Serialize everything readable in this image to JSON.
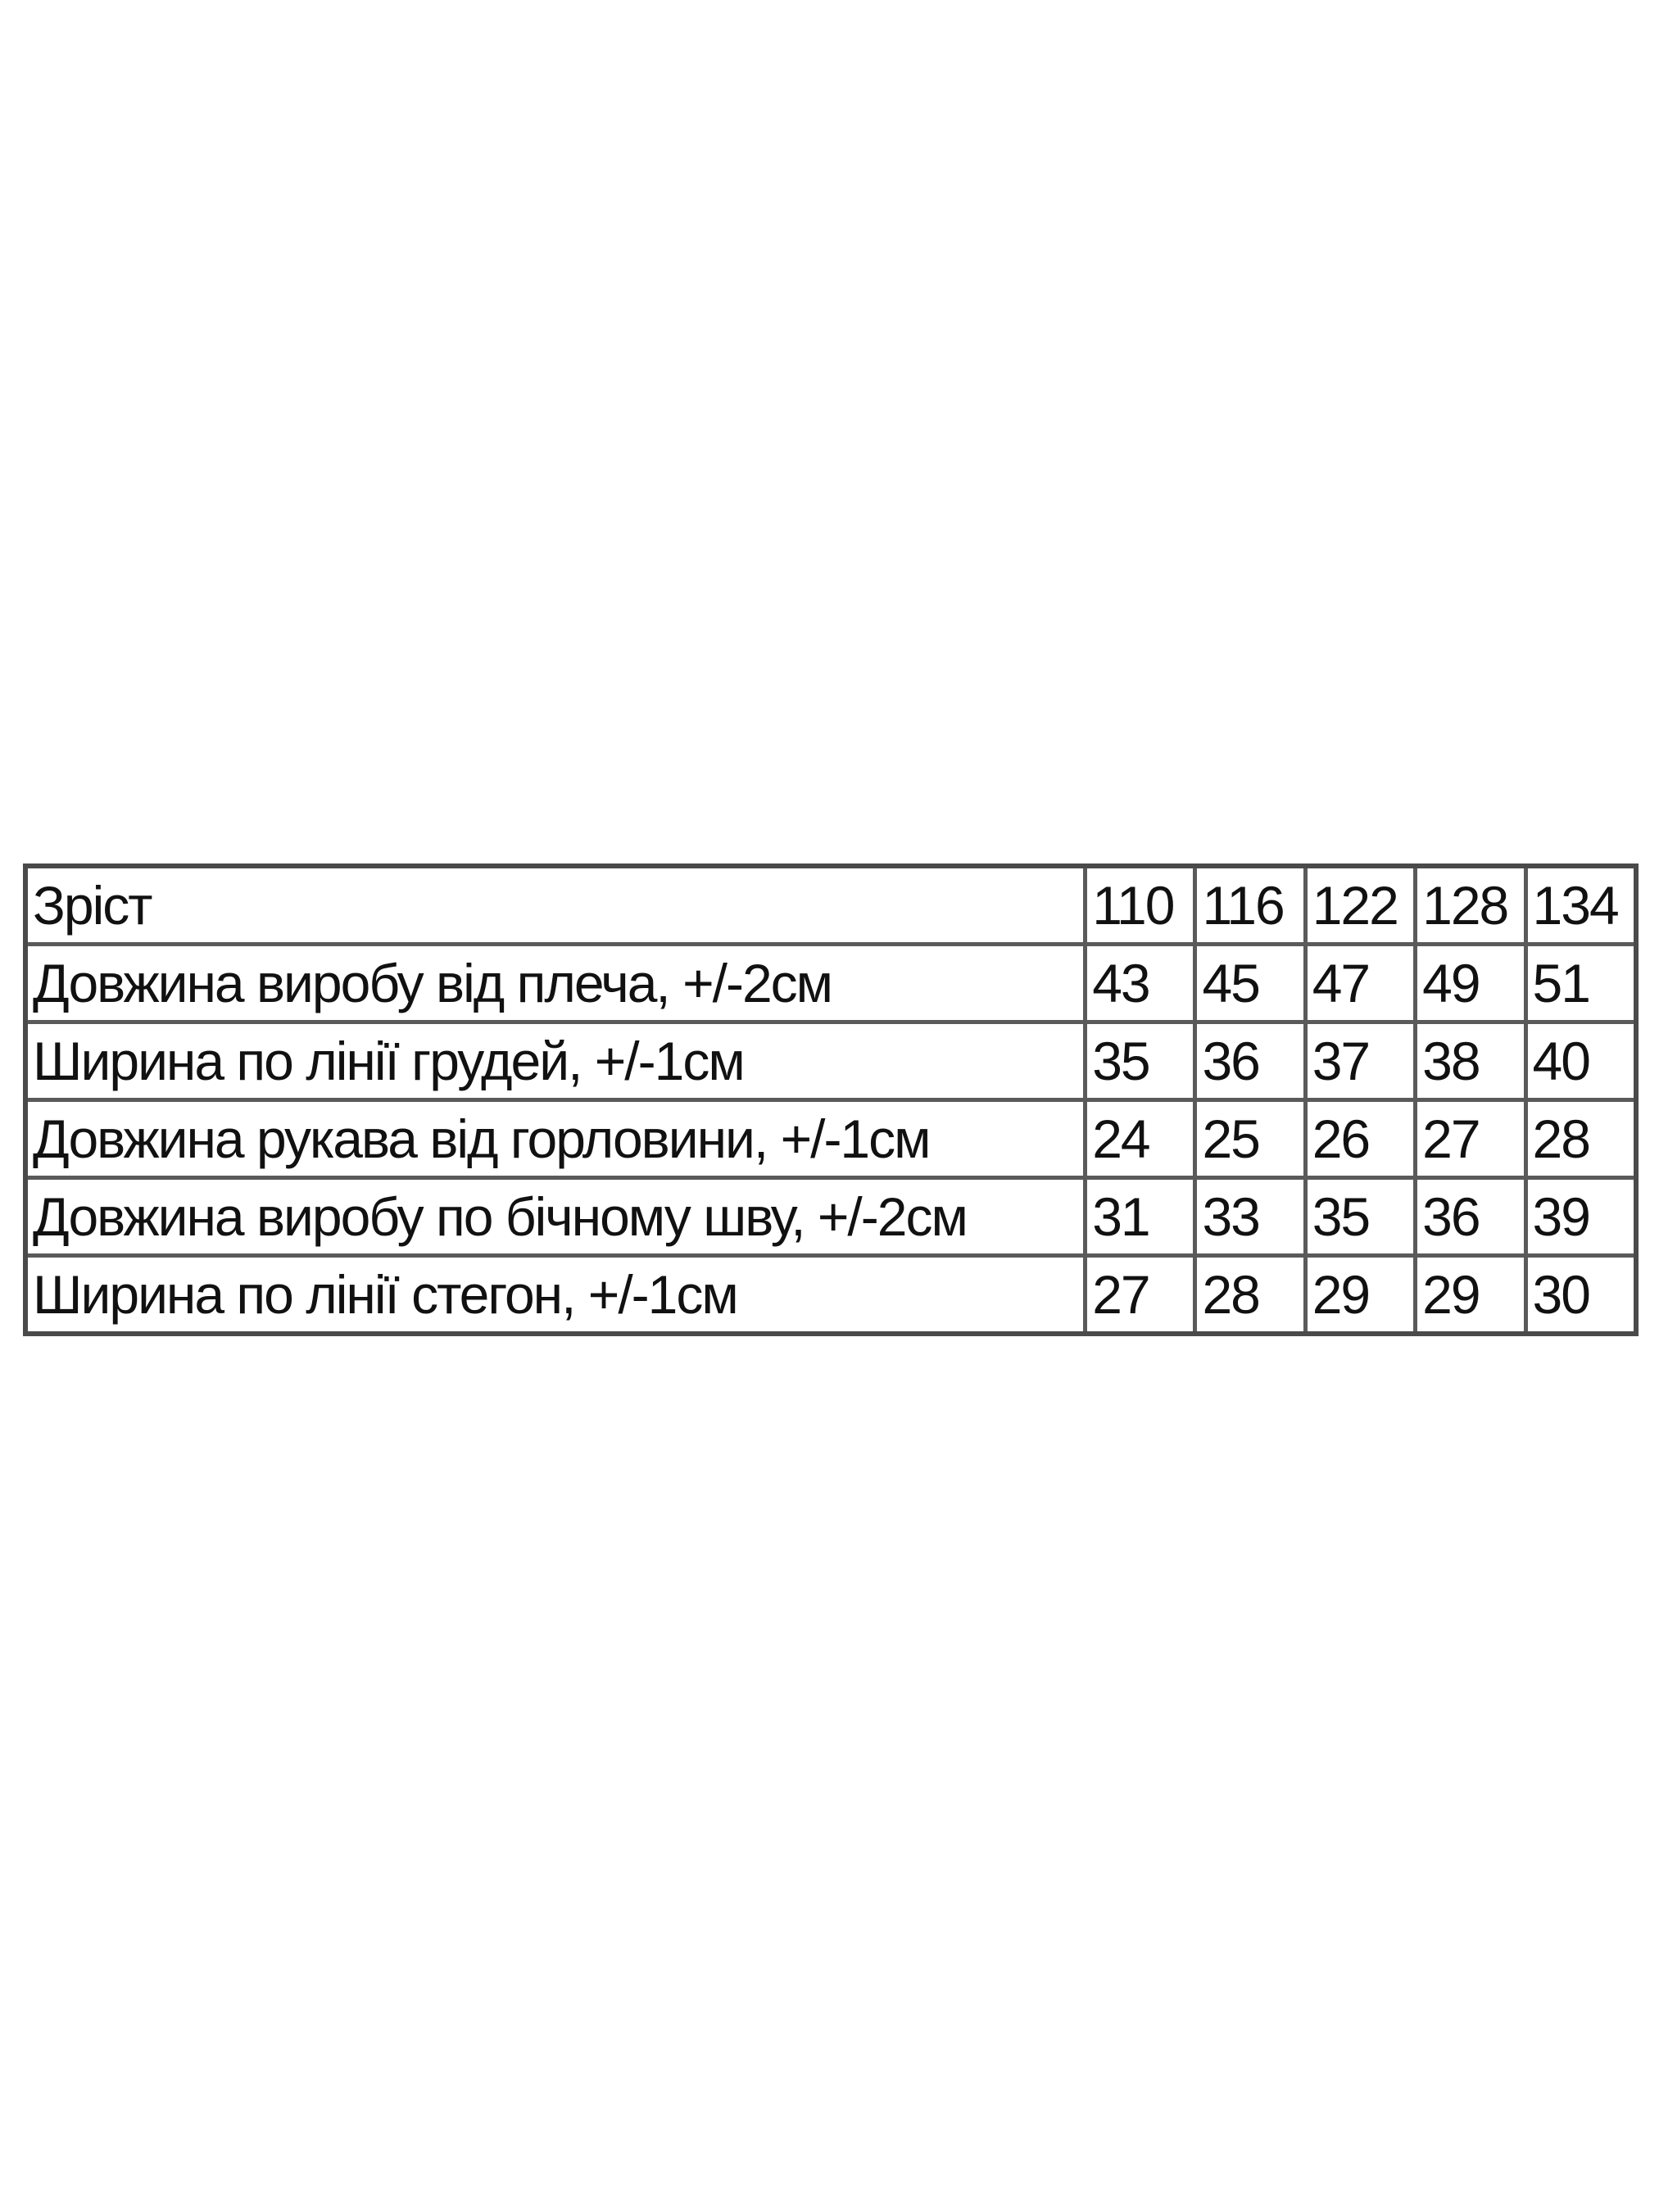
{
  "table": {
    "header": {
      "label": "Зріст",
      "sizes": [
        "110",
        "116",
        "122",
        "128",
        "134"
      ]
    },
    "rows": [
      {
        "label": "Довжина виробу від плеча, +/-2см",
        "values": [
          "43",
          "45",
          "47",
          "49",
          "51"
        ]
      },
      {
        "label": "Ширина по лінії грудей, +/-1см",
        "values": [
          "35",
          "36",
          "37",
          "38",
          "40"
        ]
      },
      {
        "label": "Довжина рукава від горловини, +/-1см",
        "values": [
          "24",
          "25",
          "26",
          "27",
          "28"
        ]
      },
      {
        "label": "Довжина виробу по бічному шву, +/-2см",
        "values": [
          "31",
          "33",
          "35",
          "36",
          "39"
        ]
      },
      {
        "label": "Ширина по лінії стегон, +/-1см",
        "values": [
          "27",
          "28",
          "29",
          "29",
          "30"
        ]
      }
    ]
  }
}
